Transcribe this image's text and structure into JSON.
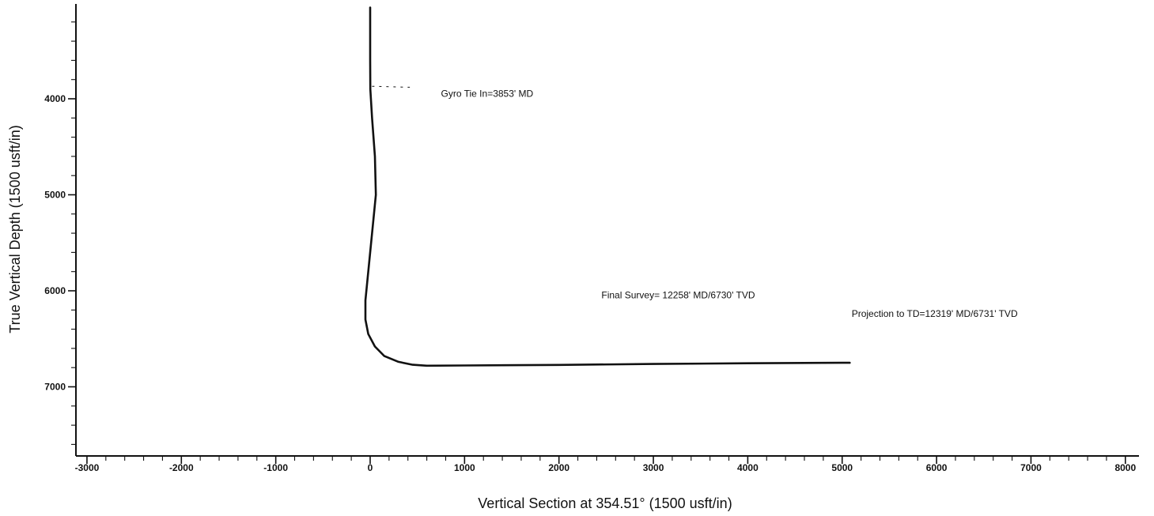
{
  "chart_data": {
    "type": "line",
    "xlabel": "Vertical Section at 354.51° (1500 usft/in)",
    "ylabel": "True Vertical Depth (1500 usft/in)",
    "xlim": [
      -3050,
      8050
    ],
    "ylim": [
      3050,
      7750
    ],
    "y_inverted": true,
    "grid": false,
    "x_ticks": [
      -3000,
      -2000,
      -1000,
      0,
      1000,
      2000,
      3000,
      4000,
      5000,
      6000,
      7000,
      8000
    ],
    "x_tick_labels": [
      "-3000",
      "-2000",
      "-1000",
      "0",
      "1000",
      "2000",
      "3000",
      "4000",
      "5000",
      "6000",
      "7000",
      "8000"
    ],
    "y_ticks": [
      4000,
      5000,
      6000,
      7000
    ],
    "y_tick_labels": [
      "4000",
      "5000",
      "6000",
      "7000"
    ],
    "series": [
      {
        "color": "#111111",
        "x": [
          0,
          0,
          2,
          20,
          50,
          60,
          20,
          -20,
          -50,
          -50,
          -20,
          50,
          150,
          300,
          450,
          600,
          1000,
          2000,
          3000,
          4000,
          5000,
          5080
        ],
        "y": [
          3050,
          3600,
          3900,
          4200,
          4600,
          5000,
          5400,
          5800,
          6100,
          6300,
          6450,
          6580,
          6680,
          6740,
          6770,
          6780,
          6778,
          6772,
          6762,
          6755,
          6750,
          6750
        ]
      }
    ],
    "annotations": [
      {
        "id": "gyro",
        "text": "Gyro Tie In=3853' MD",
        "x": 750,
        "y": 3980
      },
      {
        "id": "final",
        "text": "Final Survey= 12258' MD/6730' TVD",
        "x": 2450,
        "y": 6080
      },
      {
        "id": "projection",
        "text": "Projection to TD=12319' MD/6731' TVD",
        "x": 5100,
        "y": 6270
      }
    ]
  }
}
